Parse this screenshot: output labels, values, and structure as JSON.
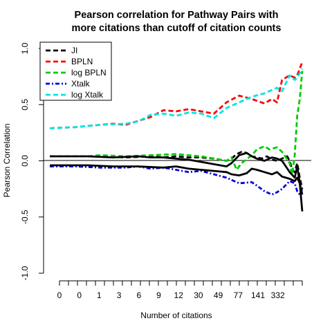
{
  "chart_data": {
    "type": "line",
    "title_lines": [
      "Pearson correlation for Pathway Pairs with",
      "more citations than cutoff of citation counts"
    ],
    "xlabel": "Number of citations",
    "ylabel": "Pearson Correlation",
    "x_tick_labels": [
      "0",
      "0",
      "1",
      "3",
      "6",
      "9",
      "12",
      "30",
      "49",
      "77",
      "141",
      "332"
    ],
    "yticks": [
      -1.0,
      -0.5,
      0.0,
      0.5,
      1.0
    ],
    "ytick_labels": [
      "-1.0",
      "-0.5",
      "0.0",
      "0.5",
      "1.0"
    ],
    "ylim": [
      -1.0,
      1.0
    ],
    "xlim": [
      0,
      1
    ],
    "reference_line_y": 0,
    "legend_position": "top-left",
    "series": [
      {
        "name": "JI",
        "color": "#000000",
        "dash": "dashed",
        "x": [
          0.0,
          0.2,
          0.3,
          0.4,
          0.45,
          0.5,
          0.55,
          0.6,
          0.65,
          0.7,
          0.72,
          0.74,
          0.76,
          0.78,
          0.8,
          0.82,
          0.84,
          0.86,
          0.88,
          0.9,
          0.92,
          0.94,
          0.95,
          0.96,
          0.97,
          0.98,
          0.99,
          1.0
        ],
        "y": [
          0.04,
          0.04,
          0.03,
          0.04,
          0.03,
          0.04,
          0.03,
          0.03,
          0.02,
          0.0,
          0.02,
          0.06,
          0.08,
          0.07,
          0.04,
          0.03,
          0.02,
          0.04,
          0.01,
          0.0,
          0.02,
          0.04,
          0.0,
          -0.08,
          -0.1,
          -0.02,
          -0.15,
          -0.25
        ]
      },
      {
        "name": "BPLN",
        "color": "#ff0000",
        "dash": "dashed",
        "x": [
          0.0,
          0.1,
          0.15,
          0.25,
          0.3,
          0.4,
          0.45,
          0.5,
          0.55,
          0.6,
          0.65,
          0.7,
          0.75,
          0.8,
          0.85,
          0.88,
          0.9,
          0.92,
          0.95,
          0.97,
          0.98,
          0.99,
          1.0
        ],
        "y": [
          0.29,
          0.3,
          0.31,
          0.33,
          0.32,
          0.39,
          0.45,
          0.44,
          0.46,
          0.44,
          0.42,
          0.52,
          0.58,
          0.55,
          0.51,
          0.55,
          0.52,
          0.72,
          0.76,
          0.74,
          0.76,
          0.82,
          0.88
        ]
      },
      {
        "name": "log BPLN",
        "color": "#00cc00",
        "dash": "dashed",
        "x": [
          0.0,
          0.15,
          0.2,
          0.3,
          0.4,
          0.5,
          0.55,
          0.6,
          0.65,
          0.7,
          0.72,
          0.74,
          0.76,
          0.8,
          0.82,
          0.85,
          0.87,
          0.9,
          0.92,
          0.95,
          0.96,
          0.97,
          0.98,
          0.99,
          1.0
        ],
        "y": [
          0.04,
          0.04,
          0.05,
          0.04,
          0.05,
          0.06,
          0.05,
          0.04,
          0.02,
          0.0,
          0.03,
          -0.08,
          -0.02,
          0.05,
          0.1,
          0.13,
          0.1,
          0.12,
          0.08,
          -0.02,
          -0.12,
          0.05,
          0.4,
          0.55,
          0.8
        ]
      },
      {
        "name": "Xtalk",
        "color": "#0000dd",
        "dash": "dashdot",
        "x": [
          0.0,
          0.1,
          0.2,
          0.3,
          0.35,
          0.4,
          0.45,
          0.5,
          0.55,
          0.6,
          0.65,
          0.7,
          0.75,
          0.8,
          0.82,
          0.85,
          0.88,
          0.9,
          0.92,
          0.95,
          0.97,
          0.98,
          0.99,
          1.0
        ],
        "y": [
          -0.05,
          -0.05,
          -0.06,
          -0.06,
          -0.05,
          -0.07,
          -0.06,
          -0.08,
          -0.1,
          -0.09,
          -0.12,
          -0.15,
          -0.2,
          -0.19,
          -0.22,
          -0.27,
          -0.3,
          -0.28,
          -0.25,
          -0.18,
          -0.2,
          -0.27,
          -0.3,
          -0.25
        ]
      },
      {
        "name": "log Xtalk",
        "color": "#00e5e5",
        "dash": "dashed",
        "x": [
          0.0,
          0.1,
          0.15,
          0.2,
          0.3,
          0.35,
          0.4,
          0.45,
          0.5,
          0.55,
          0.6,
          0.65,
          0.7,
          0.75,
          0.8,
          0.85,
          0.88,
          0.9,
          0.92,
          0.95,
          0.97,
          0.98,
          0.99,
          1.0
        ],
        "y": [
          0.29,
          0.3,
          0.31,
          0.32,
          0.33,
          0.35,
          0.41,
          0.42,
          0.4,
          0.43,
          0.42,
          0.38,
          0.47,
          0.52,
          0.57,
          0.6,
          0.63,
          0.65,
          0.62,
          0.76,
          0.72,
          0.74,
          0.78,
          0.82
        ]
      },
      {
        "name": "",
        "color": "#000000",
        "dash": "solid",
        "legend": false,
        "x": [
          0.0,
          0.15,
          0.25,
          0.35,
          0.4,
          0.45,
          0.5,
          0.55,
          0.6,
          0.65,
          0.7,
          0.72,
          0.75,
          0.78,
          0.8,
          0.82,
          0.85,
          0.88,
          0.9,
          0.92,
          0.95,
          0.97,
          0.98,
          0.99,
          1.0
        ],
        "y": [
          0.04,
          0.04,
          0.03,
          0.04,
          0.03,
          0.03,
          0.02,
          0.01,
          -0.01,
          -0.03,
          -0.05,
          -0.02,
          0.05,
          0.07,
          0.04,
          0.02,
          0.0,
          0.03,
          0.02,
          0.0,
          -0.1,
          -0.15,
          -0.05,
          -0.2,
          -0.3
        ]
      },
      {
        "name": "",
        "color": "#000000",
        "dash": "solid",
        "legend": false,
        "x": [
          0.0,
          0.15,
          0.25,
          0.35,
          0.45,
          0.5,
          0.55,
          0.6,
          0.65,
          0.7,
          0.72,
          0.75,
          0.78,
          0.8,
          0.82,
          0.85,
          0.88,
          0.9,
          0.92,
          0.95,
          0.97,
          0.98,
          0.99,
          1.0
        ],
        "y": [
          -0.04,
          -0.04,
          -0.05,
          -0.05,
          -0.06,
          -0.05,
          -0.07,
          -0.08,
          -0.09,
          -0.1,
          -0.12,
          -0.13,
          -0.11,
          -0.07,
          -0.08,
          -0.1,
          -0.12,
          -0.1,
          -0.14,
          -0.16,
          -0.18,
          -0.15,
          -0.2,
          -0.45
        ]
      }
    ]
  }
}
